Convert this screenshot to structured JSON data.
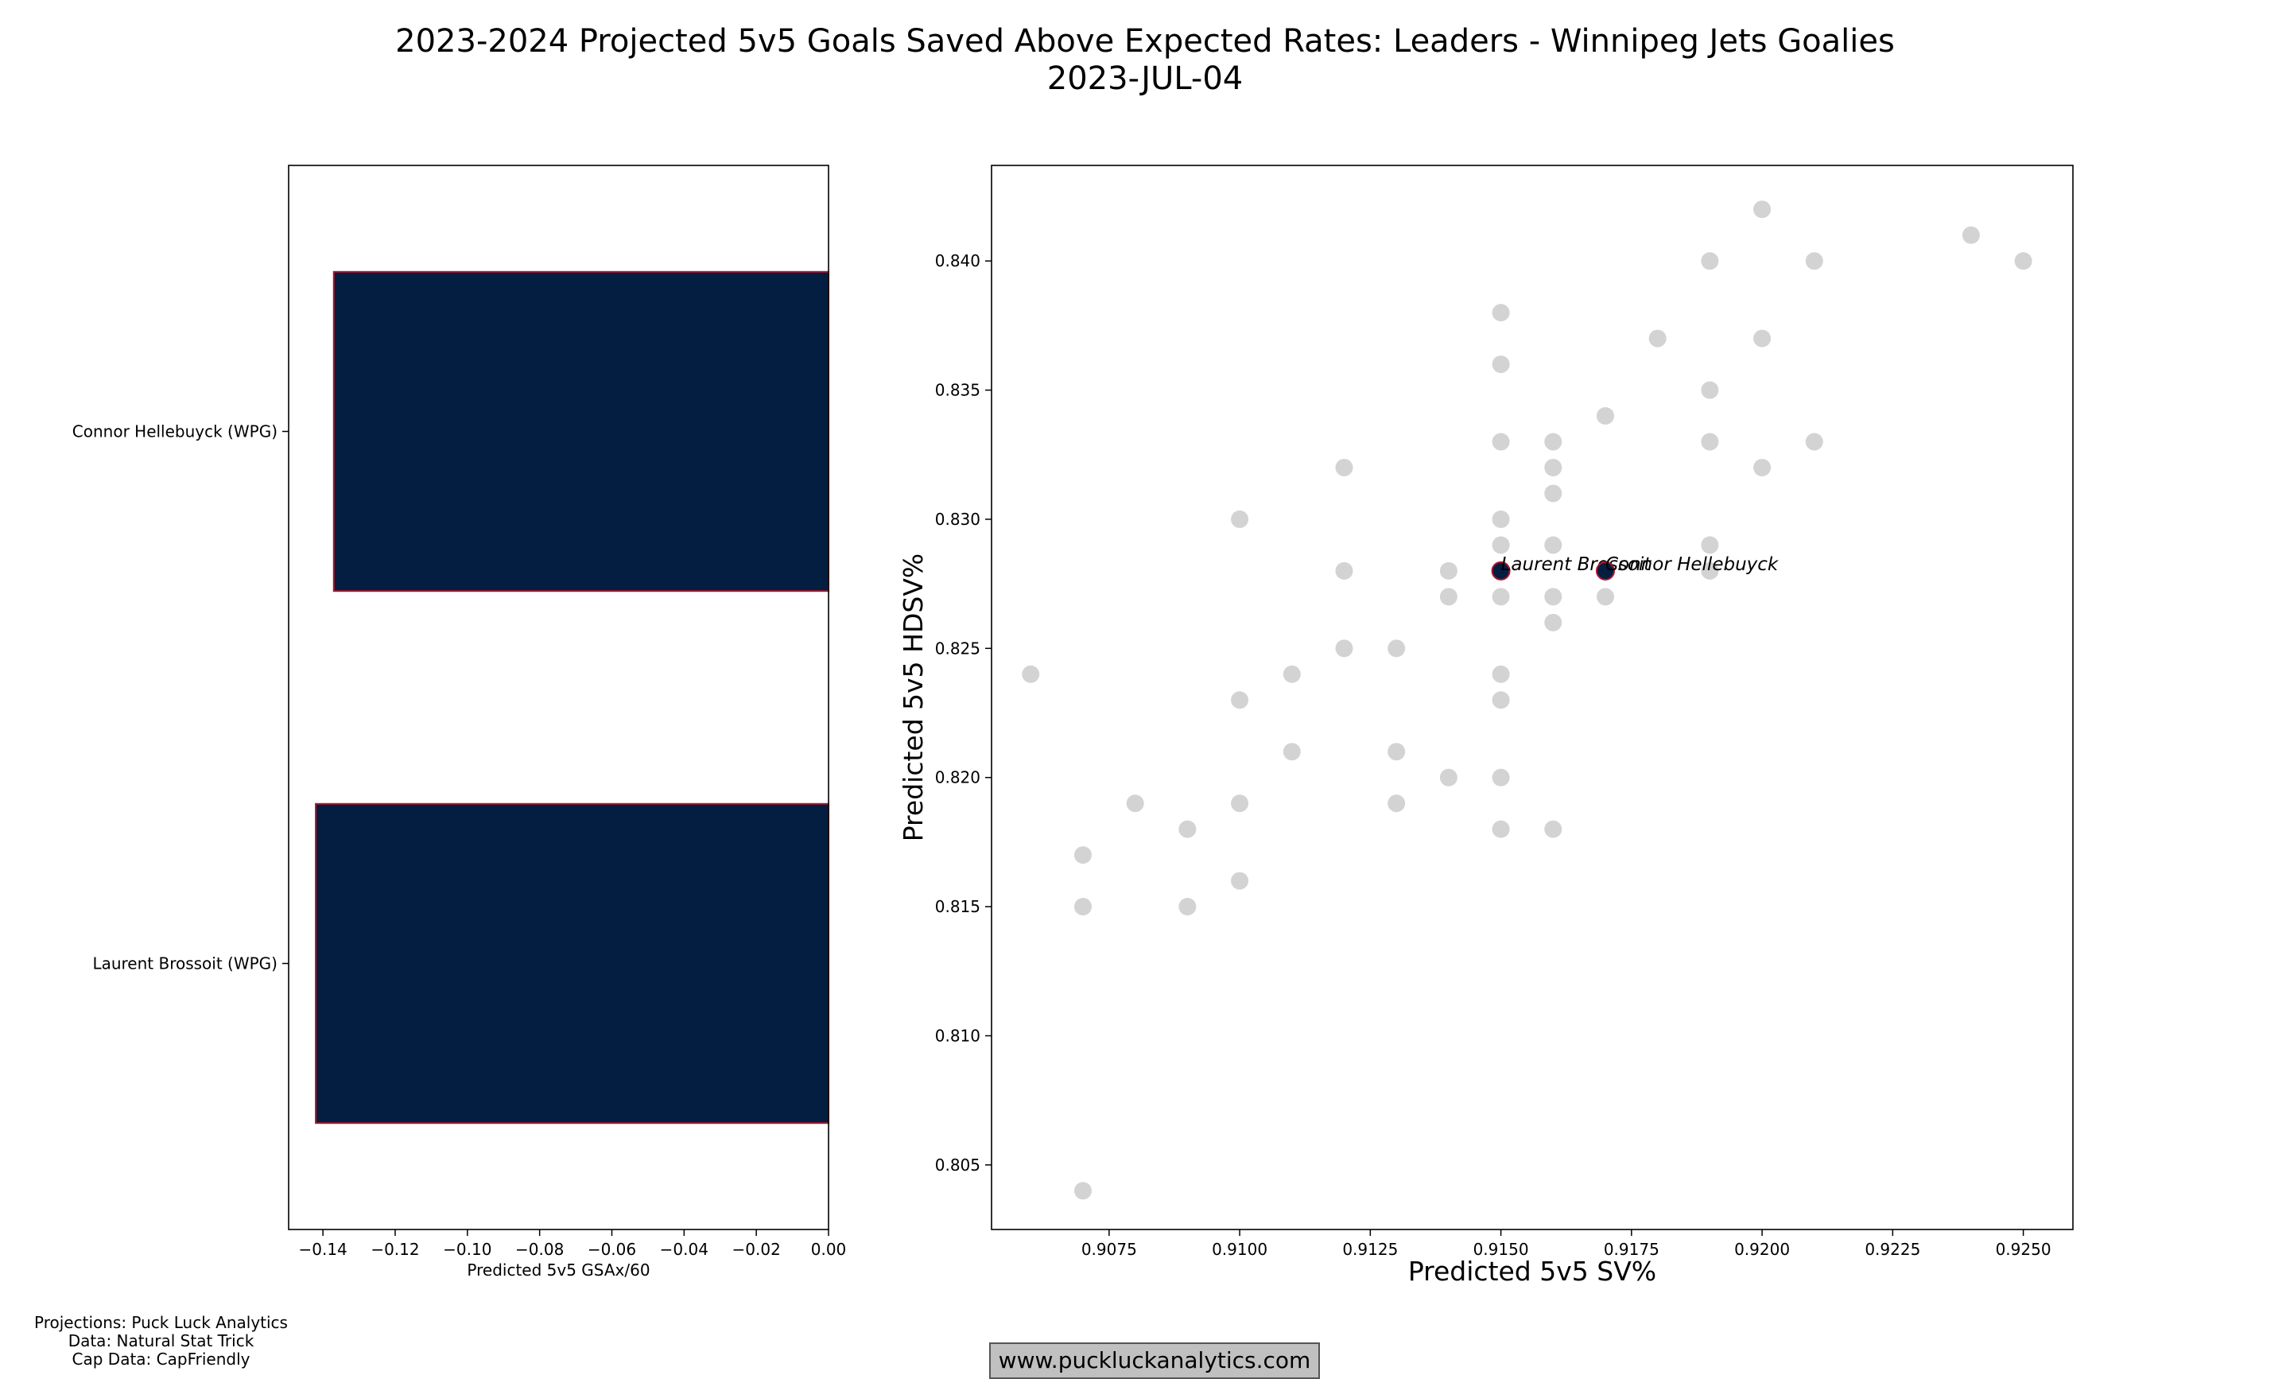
{
  "title": "2023-2024 Projected 5v5 Goals Saved Above Expected Rates: Leaders - Winnipeg Jets Goalies",
  "subtitle": "2023-JUL-04",
  "credits": [
    "Projections: Puck Luck Analytics",
    "Data: Natural Stat Trick",
    "Cap Data: CapFriendly"
  ],
  "website": "www.puckluckanalytics.com",
  "colors": {
    "bar_fill": "#041E42",
    "bar_edge": "#AC162C",
    "scatter_gray": "#D3D3D3",
    "highlight": "#041E42"
  },
  "chart_data": [
    {
      "type": "bar",
      "orientation": "horizontal",
      "categories": [
        "Connor Hellebuyck (WPG)",
        "Laurent Brossoit (WPG)"
      ],
      "values": [
        -0.137,
        -0.142
      ],
      "xlabel": "Predicted 5v5 GSAx/60",
      "ylabel": "",
      "xlim": [
        -0.1495,
        0.0
      ],
      "xticks": [
        -0.14,
        -0.12,
        -0.1,
        -0.08,
        -0.06,
        -0.04,
        -0.02,
        0.0
      ],
      "xtick_labels": [
        "−0.14",
        "−0.12",
        "−0.10",
        "−0.08",
        "−0.06",
        "−0.04",
        "−0.02",
        "0.00"
      ],
      "grid": false,
      "legend": "none"
    },
    {
      "type": "scatter",
      "xlabel": "Predicted 5v5 SV%",
      "ylabel": "Predicted 5v5 HDSV%",
      "xlim": [
        0.90525,
        0.92595
      ],
      "ylim": [
        0.8025,
        0.8437
      ],
      "xticks": [
        0.9075,
        0.91,
        0.9125,
        0.915,
        0.9175,
        0.92,
        0.9225,
        0.925
      ],
      "xtick_labels": [
        "0.9075",
        "0.9100",
        "0.9125",
        "0.9150",
        "0.9175",
        "0.9200",
        "0.9225",
        "0.9250"
      ],
      "yticks": [
        0.805,
        0.81,
        0.815,
        0.82,
        0.825,
        0.83,
        0.835,
        0.84
      ],
      "ytick_labels": [
        "0.805",
        "0.810",
        "0.815",
        "0.820",
        "0.825",
        "0.830",
        "0.835",
        "0.840"
      ],
      "grid": false,
      "legend": "none",
      "points": [
        [
          0.906,
          0.824
        ],
        [
          0.907,
          0.817
        ],
        [
          0.907,
          0.815
        ],
        [
          0.907,
          0.804
        ],
        [
          0.908,
          0.819
        ],
        [
          0.909,
          0.818
        ],
        [
          0.909,
          0.815
        ],
        [
          0.91,
          0.83
        ],
        [
          0.91,
          0.823
        ],
        [
          0.91,
          0.819
        ],
        [
          0.91,
          0.816
        ],
        [
          0.911,
          0.824
        ],
        [
          0.911,
          0.821
        ],
        [
          0.912,
          0.832
        ],
        [
          0.912,
          0.828
        ],
        [
          0.912,
          0.825
        ],
        [
          0.913,
          0.825
        ],
        [
          0.913,
          0.821
        ],
        [
          0.913,
          0.819
        ],
        [
          0.914,
          0.828
        ],
        [
          0.914,
          0.827
        ],
        [
          0.914,
          0.82
        ],
        [
          0.915,
          0.838
        ],
        [
          0.915,
          0.836
        ],
        [
          0.915,
          0.833
        ],
        [
          0.915,
          0.83
        ],
        [
          0.915,
          0.829
        ],
        [
          0.915,
          0.827
        ],
        [
          0.915,
          0.824
        ],
        [
          0.915,
          0.823
        ],
        [
          0.915,
          0.82
        ],
        [
          0.915,
          0.818
        ],
        [
          0.916,
          0.833
        ],
        [
          0.916,
          0.832
        ],
        [
          0.916,
          0.831
        ],
        [
          0.916,
          0.829
        ],
        [
          0.916,
          0.827
        ],
        [
          0.916,
          0.826
        ],
        [
          0.916,
          0.818
        ],
        [
          0.917,
          0.834
        ],
        [
          0.917,
          0.827
        ],
        [
          0.918,
          0.837
        ],
        [
          0.919,
          0.84
        ],
        [
          0.919,
          0.835
        ],
        [
          0.919,
          0.833
        ],
        [
          0.919,
          0.829
        ],
        [
          0.919,
          0.828
        ],
        [
          0.92,
          0.842
        ],
        [
          0.92,
          0.837
        ],
        [
          0.92,
          0.832
        ],
        [
          0.921,
          0.84
        ],
        [
          0.921,
          0.833
        ],
        [
          0.924,
          0.841
        ],
        [
          0.925,
          0.84
        ]
      ],
      "highlighted": [
        {
          "label": "Laurent Brossoit",
          "x": 0.915,
          "y": 0.828
        },
        {
          "label": "Connor Hellebuyck",
          "x": 0.917,
          "y": 0.828
        }
      ]
    }
  ]
}
